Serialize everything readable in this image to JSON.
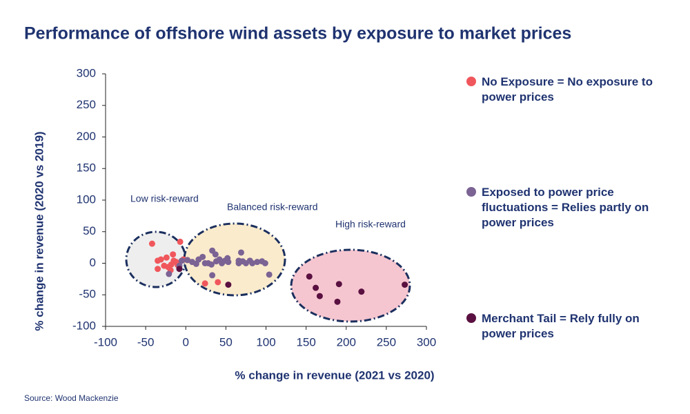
{
  "chart_data": {
    "type": "scatter",
    "title": "Performance of offshore wind assets by exposure to market prices",
    "xlabel": "% change in revenue (2021 vs 2020)",
    "ylabel": "% change in revenue (2020 vs 2019)",
    "source": "Source: Wood Mackenzie",
    "annotations": [
      "Low risk-reward",
      "Balanced risk-reward",
      "High risk-reward"
    ],
    "xlim": [
      -100,
      300
    ],
    "xticks": [
      -100,
      -50,
      0,
      50,
      100,
      150,
      200,
      250,
      300
    ],
    "ylim": [
      -100,
      300
    ],
    "yticks": [
      -100,
      -50,
      0,
      50,
      100,
      150,
      200,
      250,
      300
    ],
    "series": [
      {
        "name": "No Exposure = No exposure to power prices",
        "color": "#f0575c",
        "x": [
          -42,
          -7,
          -35,
          -31,
          -24,
          -16,
          -35,
          -27,
          -22,
          -18,
          -15,
          -12,
          -10,
          -19,
          -5,
          -3,
          24,
          40,
          2
        ],
        "y": [
          31,
          34,
          4,
          6,
          9,
          14,
          -9,
          -4,
          -6,
          -2,
          4,
          2,
          -3,
          -11,
          4,
          6,
          -32,
          -30,
          5
        ]
      },
      {
        "name": "Exposed to power price fluctuations = Relies partly on power prices",
        "color": "#7b6394",
        "x": [
          -21,
          -8,
          -5,
          2,
          8,
          13,
          16,
          21,
          24,
          28,
          32,
          33,
          37,
          38,
          42,
          45,
          49,
          52,
          53,
          33,
          66,
          69,
          71,
          75,
          80,
          83,
          89,
          95,
          99,
          104,
          66
        ],
        "y": [
          -17,
          -4,
          4,
          5,
          2,
          -1,
          6,
          10,
          0,
          0,
          -2,
          20,
          14,
          3,
          6,
          0,
          4,
          8,
          2,
          -19,
          0,
          17,
          3,
          0,
          4,
          0,
          2,
          3,
          0,
          -18,
          4
        ]
      },
      {
        "name": "Merchant Tail = Rely fully on power prices",
        "color": "#5a1040",
        "x": [
          -8,
          53,
          154,
          162,
          167,
          191,
          189,
          219,
          273
        ],
        "y": [
          -9,
          -34,
          -21,
          -39,
          -52,
          -33,
          -61,
          -45,
          -34
        ]
      }
    ]
  }
}
